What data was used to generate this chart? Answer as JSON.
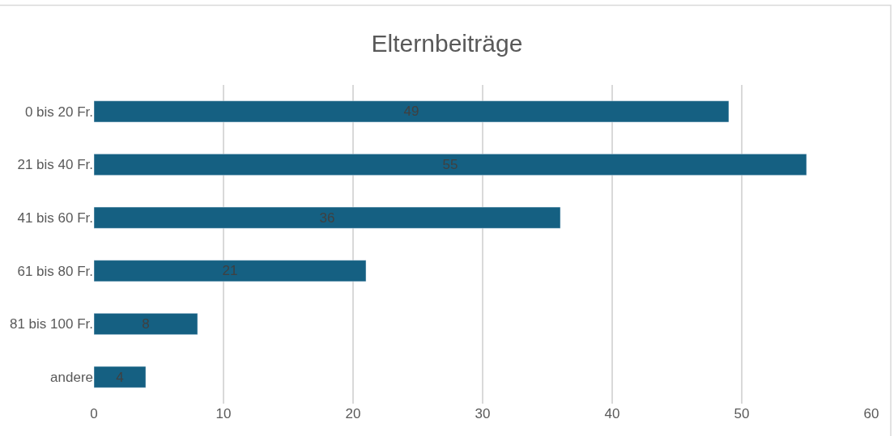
{
  "chart_data": {
    "type": "bar",
    "orientation": "horizontal",
    "title": "Elternbeiträge",
    "categories": [
      "0 bis 20 Fr.",
      "21 bis 40 Fr.",
      "41 bis 60 Fr.",
      "61 bis 80 Fr.",
      "81 bis 100 Fr.",
      "andere"
    ],
    "values": [
      49,
      55,
      36,
      21,
      8,
      4
    ],
    "color": "#156082",
    "data_labels": true,
    "xlim": [
      0,
      60
    ],
    "xticks": [
      0,
      10,
      20,
      30,
      40,
      50,
      60
    ],
    "grid": "x"
  }
}
